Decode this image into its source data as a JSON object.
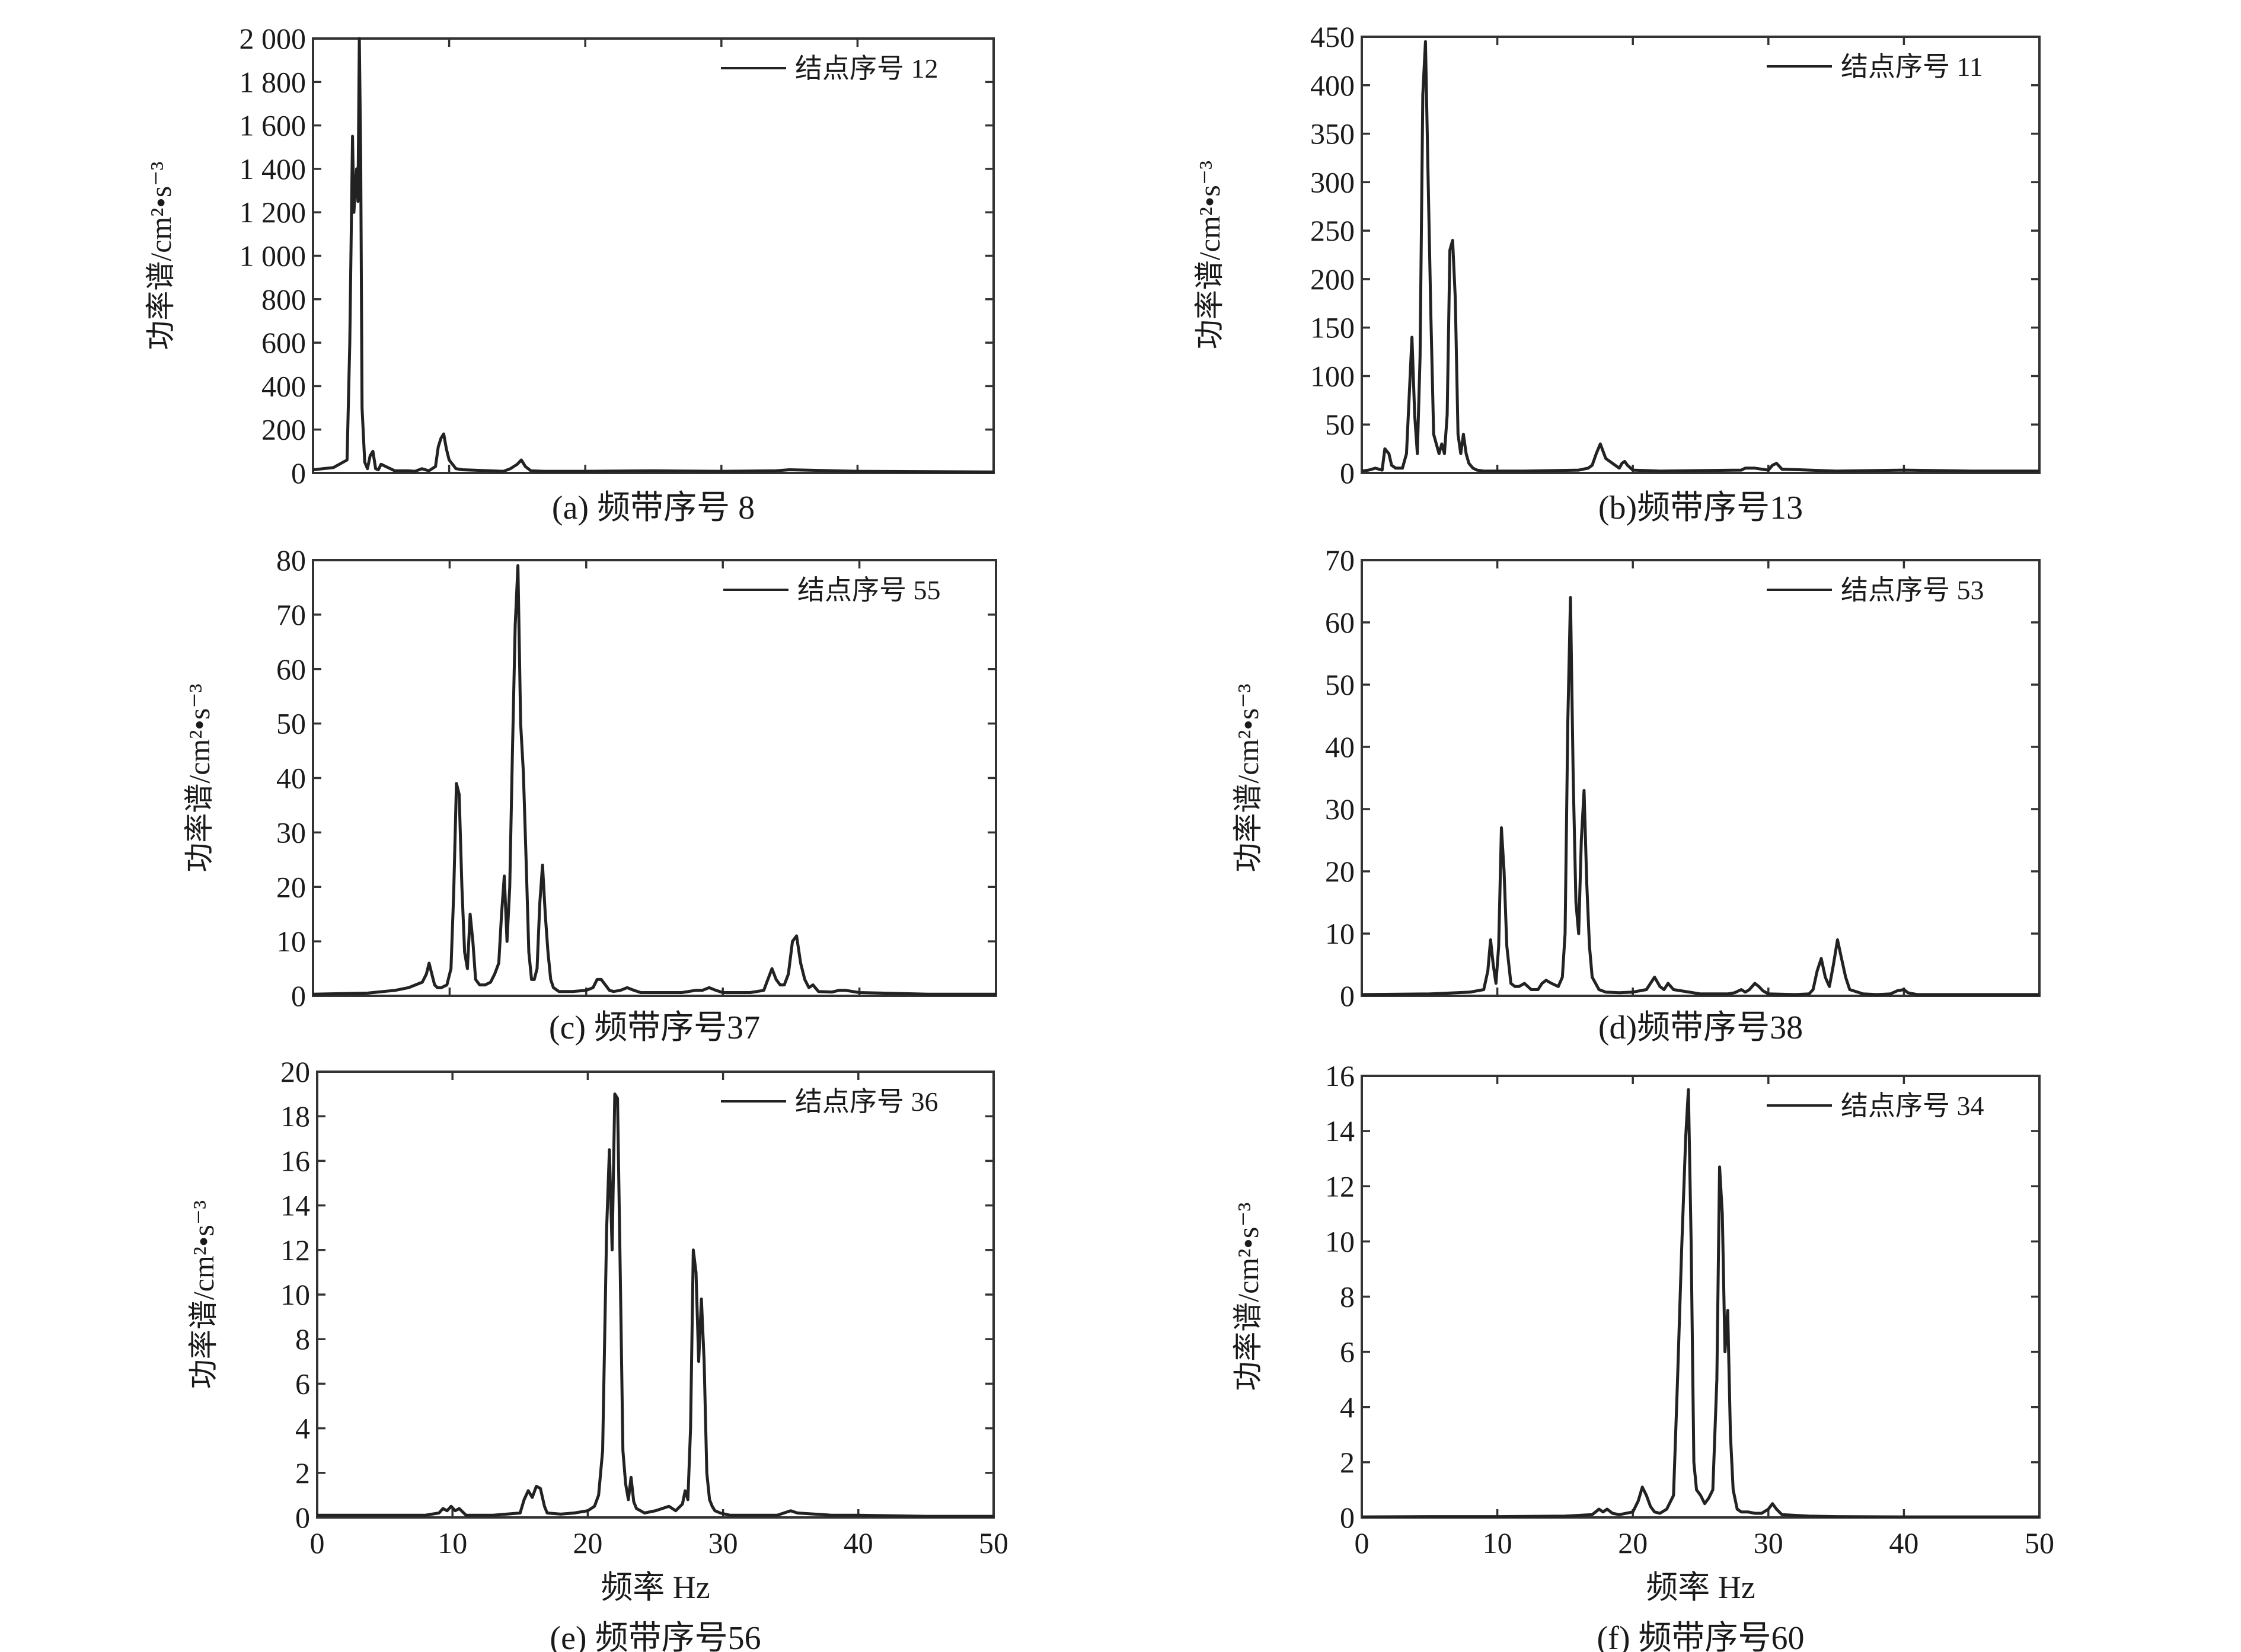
{
  "figure": {
    "xaxis_label": "频率 Hz",
    "panels": [
      {
        "caption": "(a) 频带序号 8",
        "legend": "结点序号 12",
        "ylabel": "功率谱/cm²•s⁻³",
        "ytick_labels": [
          "0",
          "200",
          "400",
          "600",
          "800",
          "1 000",
          "1 200",
          "1 400",
          "1 600",
          "1 800",
          "2 000"
        ],
        "xtick_labels": []
      },
      {
        "caption": "(b)频带序号13",
        "legend": "结点序号 11",
        "ylabel": "功率谱/cm²•s⁻³",
        "ytick_labels": [
          "0",
          "50",
          "100",
          "150",
          "200",
          "250",
          "300",
          "350",
          "400",
          "450"
        ],
        "xtick_labels": []
      },
      {
        "caption": "(c) 频带序号37",
        "legend": "结点序号 55",
        "ylabel": "功率谱/cm²•s⁻³",
        "ytick_labels": [
          "0",
          "10",
          "20",
          "30",
          "40",
          "50",
          "60",
          "70",
          "80"
        ],
        "xtick_labels": []
      },
      {
        "caption": "(d)频带序号38",
        "legend": "结点序号 53",
        "ylabel": "功率谱/cm²•s⁻³",
        "ytick_labels": [
          "0",
          "10",
          "20",
          "30",
          "40",
          "50",
          "60",
          "70"
        ],
        "xtick_labels": []
      },
      {
        "caption": "(e) 频带序号56",
        "legend": "结点序号 36",
        "ylabel": "功率谱/cm²•s⁻³",
        "ytick_labels": [
          "0",
          "2",
          "4",
          "6",
          "8",
          "10",
          "12",
          "14",
          "16",
          "18",
          "20"
        ],
        "xtick_labels": [
          "0",
          "10",
          "20",
          "30",
          "40",
          "50"
        ],
        "xlabel": "频率 Hz"
      },
      {
        "caption": "(f) 频带序号60",
        "legend": "结点序号 34",
        "ylabel": "功率谱/cm²•s⁻³",
        "ytick_labels": [
          "0",
          "2",
          "4",
          "6",
          "8",
          "10",
          "12",
          "14",
          "16"
        ],
        "xtick_labels": [
          "0",
          "10",
          "20",
          "30",
          "40",
          "50"
        ],
        "xlabel": "频率 Hz"
      }
    ]
  },
  "chart_data": [
    {
      "type": "line",
      "xlim": [
        0,
        50
      ],
      "ylim": [
        0,
        2000
      ],
      "series": [
        {
          "name": "结点序号 12",
          "x": [
            0,
            1.5,
            2.5,
            2.7,
            2.9,
            3.0,
            3.2,
            3.3,
            3.4,
            3.5,
            3.6,
            3.8,
            4.0,
            4.2,
            4.4,
            4.6,
            4.8,
            5.0,
            6,
            7,
            7.5,
            8,
            8.5,
            9,
            9.2,
            9.4,
            9.6,
            9.8,
            10,
            10.5,
            11,
            13,
            14,
            14.5,
            15,
            15.3,
            15.6,
            16,
            17,
            20,
            25,
            30,
            34,
            35,
            40,
            50
          ],
          "y": [
            15,
            25,
            60,
            600,
            1550,
            1200,
            1400,
            1250,
            2000,
            1450,
            300,
            50,
            20,
            80,
            100,
            20,
            15,
            40,
            10,
            10,
            8,
            20,
            10,
            30,
            120,
            160,
            180,
            110,
            60,
            20,
            15,
            10,
            8,
            20,
            40,
            60,
            30,
            10,
            8,
            8,
            10,
            8,
            10,
            15,
            8,
            5
          ]
        }
      ]
    },
    {
      "type": "line",
      "xlim": [
        0,
        50
      ],
      "ylim": [
        0,
        450
      ],
      "series": [
        {
          "name": "结点序号 11",
          "x": [
            0,
            0.5,
            1,
            1.5,
            1.7,
            2.0,
            2.2,
            2.5,
            3,
            3.3,
            3.5,
            3.7,
            3.9,
            4.1,
            4.3,
            4.5,
            4.7,
            4.9,
            5.1,
            5.3,
            5.5,
            5.7,
            5.9,
            6.1,
            6.3,
            6.5,
            6.7,
            6.9,
            7.1,
            7.3,
            7.5,
            7.7,
            7.9,
            8.2,
            8.5,
            9,
            10,
            12,
            16,
            16.7,
            17,
            17.3,
            17.6,
            18,
            19,
            19.2,
            19.4,
            19.6,
            20,
            22,
            28,
            28.3,
            29,
            30,
            30.3,
            30.6,
            31,
            35,
            40,
            45,
            50
          ],
          "y": [
            2,
            3,
            5,
            3,
            25,
            20,
            8,
            5,
            5,
            20,
            80,
            140,
            60,
            20,
            120,
            390,
            445,
            300,
            160,
            40,
            30,
            20,
            30,
            20,
            60,
            230,
            240,
            180,
            40,
            20,
            40,
            20,
            10,
            5,
            3,
            2,
            2,
            2,
            3,
            5,
            8,
            20,
            30,
            15,
            5,
            10,
            12,
            8,
            3,
            2,
            3,
            5,
            5,
            3,
            8,
            10,
            4,
            2,
            3,
            2,
            2
          ]
        }
      ]
    },
    {
      "type": "line",
      "xlim": [
        0,
        50
      ],
      "ylim": [
        0,
        80
      ],
      "series": [
        {
          "name": "结点序号 55",
          "x": [
            0,
            4,
            6,
            7,
            8,
            8.3,
            8.5,
            8.7,
            8.9,
            9.1,
            9.4,
            9.8,
            10.1,
            10.3,
            10.5,
            10.7,
            10.9,
            11.1,
            11.3,
            11.5,
            11.7,
            11.9,
            12.2,
            12.6,
            13,
            13.3,
            13.6,
            13.8,
            14.0,
            14.2,
            14.4,
            14.6,
            14.8,
            15.0,
            15.2,
            15.4,
            15.6,
            15.8,
            16.0,
            16.2,
            16.4,
            16.6,
            16.8,
            17.0,
            17.2,
            17.4,
            17.6,
            18,
            19,
            20,
            20.5,
            20.8,
            21.1,
            21.4,
            21.7,
            22,
            22.5,
            23,
            23.5,
            24,
            27,
            28,
            28.5,
            29,
            29.5,
            30,
            32,
            33,
            33.3,
            33.6,
            33.9,
            34.2,
            34.5,
            34.8,
            35.1,
            35.4,
            35.7,
            36,
            36.3,
            36.6,
            37,
            38,
            38.5,
            39,
            39.5,
            40,
            45,
            50
          ],
          "y": [
            0.3,
            0.5,
            1,
            1.5,
            2.5,
            4,
            6,
            4,
            2,
            1.5,
            1.5,
            2,
            5,
            19,
            39,
            37,
            20,
            8,
            5,
            15,
            10,
            3,
            2,
            2,
            2.5,
            4,
            6,
            15,
            22,
            10,
            20,
            45,
            68,
            79,
            50,
            41,
            25,
            8,
            3,
            3,
            5,
            17,
            24,
            15,
            8,
            3,
            1.5,
            0.8,
            0.8,
            1,
            1.5,
            3,
            3,
            2,
            1,
            0.8,
            1,
            1.5,
            1,
            0.6,
            0.6,
            1,
            1,
            1.5,
            1,
            0.6,
            0.6,
            1,
            3,
            5,
            3,
            2,
            2,
            4,
            10,
            11,
            6,
            3,
            1.5,
            2,
            0.8,
            0.7,
            1,
            1,
            0.8,
            0.6,
            0.3,
            0.3
          ]
        }
      ]
    },
    {
      "type": "line",
      "xlim": [
        0,
        50
      ],
      "ylim": [
        0,
        70
      ],
      "series": [
        {
          "name": "结点序号 53",
          "x": [
            0,
            5,
            8,
            9,
            9.3,
            9.5,
            9.7,
            9.9,
            10.1,
            10.3,
            10.5,
            10.7,
            11,
            11.3,
            11.6,
            12,
            12.5,
            13,
            13.3,
            13.6,
            14,
            14.5,
            14.8,
            15.0,
            15.2,
            15.4,
            15.6,
            15.8,
            16.0,
            16.2,
            16.4,
            16.6,
            16.8,
            17,
            17.5,
            18,
            19,
            20,
            21,
            21.3,
            21.6,
            22,
            22.3,
            22.6,
            23,
            25,
            27,
            27.5,
            28,
            28.3,
            28.6,
            29,
            29.3,
            29.6,
            30,
            32,
            33,
            33.3,
            33.6,
            33.9,
            34.2,
            34.5,
            34.8,
            35.1,
            35.4,
            35.7,
            36,
            37,
            38,
            39,
            39.5,
            40,
            40.3,
            41,
            45,
            50
          ],
          "y": [
            0.2,
            0.3,
            0.6,
            1,
            4,
            9,
            5,
            2,
            8,
            27,
            20,
            8,
            2,
            1.5,
            1.5,
            2,
            1,
            1,
            2,
            2.5,
            2,
            1.5,
            3,
            10,
            44,
            64,
            35,
            15,
            10,
            25,
            33,
            18,
            8,
            3,
            1,
            0.6,
            0.5,
            0.6,
            1,
            2,
            3,
            1.5,
            1,
            2,
            1,
            0.3,
            0.3,
            0.5,
            1,
            0.6,
            1,
            2,
            1.5,
            0.8,
            0.3,
            0.2,
            0.3,
            1,
            4,
            6,
            3,
            1.5,
            5,
            9,
            6,
            3,
            1,
            0.3,
            0.2,
            0.3,
            0.8,
            1,
            0.5,
            0.2,
            0.2,
            0.2
          ]
        }
      ]
    },
    {
      "type": "line",
      "xlim": [
        0,
        50
      ],
      "ylim": [
        0,
        20
      ],
      "series": [
        {
          "name": "结点序号 36",
          "x": [
            0,
            3,
            5,
            8,
            9,
            9.3,
            9.6,
            9.9,
            10.2,
            10.5,
            11,
            13,
            15,
            15.3,
            15.6,
            15.9,
            16.2,
            16.5,
            16.8,
            17,
            18,
            19,
            20,
            20.5,
            20.8,
            21.1,
            21.4,
            21.6,
            21.8,
            22.0,
            22.2,
            22.4,
            22.6,
            22.8,
            23.0,
            23.2,
            23.4,
            23.6,
            23.9,
            24.2,
            25,
            26,
            26.5,
            27,
            27.2,
            27.4,
            27.6,
            27.8,
            28.0,
            28.2,
            28.4,
            28.6,
            28.8,
            29.0,
            29.2,
            29.4,
            29.8,
            30.5,
            32,
            33,
            34,
            34.5,
            35,
            35.5,
            38,
            40,
            45,
            50
          ],
          "y": [
            0.1,
            0.1,
            0.1,
            0.1,
            0.2,
            0.4,
            0.3,
            0.5,
            0.3,
            0.4,
            0.1,
            0.1,
            0.2,
            0.8,
            1.2,
            0.9,
            1.4,
            1.3,
            0.5,
            0.2,
            0.15,
            0.2,
            0.3,
            0.5,
            1,
            3,
            13,
            16.5,
            12,
            19,
            18.8,
            11,
            3,
            1.5,
            0.8,
            1.8,
            0.7,
            0.4,
            0.3,
            0.2,
            0.3,
            0.5,
            0.3,
            0.6,
            1.2,
            0.8,
            4,
            12,
            11,
            7,
            9.8,
            7,
            2,
            0.8,
            0.5,
            0.3,
            0.2,
            0.1,
            0.1,
            0.1,
            0.1,
            0.2,
            0.3,
            0.2,
            0.1,
            0.1,
            0.05,
            0.05
          ]
        }
      ]
    },
    {
      "type": "line",
      "xlim": [
        0,
        50
      ],
      "ylim": [
        0,
        16
      ],
      "series": [
        {
          "name": "结点序号 34",
          "x": [
            0,
            5,
            10,
            15,
            17,
            17.5,
            17.8,
            18.1,
            18.5,
            19,
            20,
            20.4,
            20.7,
            21.0,
            21.3,
            21.6,
            22,
            22.5,
            23,
            23.3,
            23.6,
            23.9,
            24.1,
            24.3,
            24.5,
            24.7,
            25.0,
            25.3,
            25.6,
            25.9,
            26.2,
            26.4,
            26.6,
            26.8,
            27.0,
            27.2,
            27.4,
            27.7,
            28,
            28.5,
            29,
            29.5,
            30,
            30.3,
            30.6,
            31,
            33,
            35,
            40,
            45,
            50
          ],
          "y": [
            0.02,
            0.03,
            0.03,
            0.05,
            0.1,
            0.3,
            0.2,
            0.3,
            0.15,
            0.1,
            0.2,
            0.6,
            1.1,
            0.8,
            0.4,
            0.2,
            0.15,
            0.3,
            0.8,
            5,
            9.7,
            13.8,
            15.5,
            10,
            2,
            1,
            0.8,
            0.5,
            0.7,
            1,
            5,
            12.7,
            11,
            6,
            7.5,
            3,
            1,
            0.3,
            0.2,
            0.2,
            0.15,
            0.15,
            0.3,
            0.5,
            0.3,
            0.1,
            0.05,
            0.03,
            0.02,
            0.02,
            0.02
          ]
        }
      ]
    }
  ]
}
